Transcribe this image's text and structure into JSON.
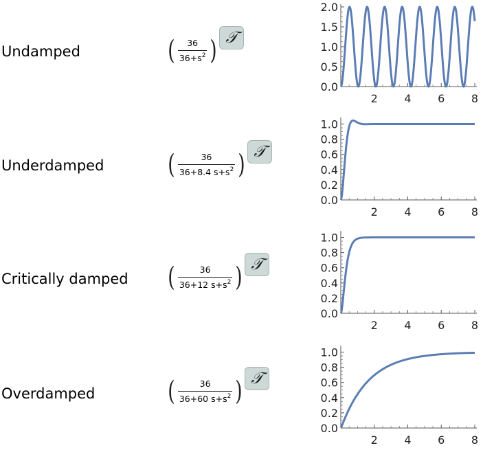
{
  "badge_glyph": "𝒯",
  "rows": [
    {
      "label": "Undamped",
      "numerator": "36",
      "denominator": "36+s",
      "denominator_power": "2"
    },
    {
      "label": "Underdamped",
      "numerator": "36",
      "denominator": "36+8.4 s+s",
      "denominator_power": "2"
    },
    {
      "label": "Critically damped",
      "numerator": "36",
      "denominator": "36+12 s+s",
      "denominator_power": "2"
    },
    {
      "label": "Overdamped",
      "numerator": "36",
      "denominator": "36+60 s+s",
      "denominator_power": "2"
    }
  ],
  "chart_data": [
    {
      "type": "line",
      "series": [
        {
          "response": "undamped",
          "omega_n": 6
        }
      ],
      "xlim": [
        0,
        8
      ],
      "ylim": [
        0,
        2
      ],
      "xticks": [
        "2",
        "4",
        "6",
        "8"
      ],
      "yticks": [
        "0.0",
        "0.5",
        "1.0",
        "1.5",
        "2.0"
      ],
      "line_color": "#5b7db4"
    },
    {
      "type": "line",
      "series": [
        {
          "response": "underdamped",
          "omega_n": 6,
          "zeta": 0.7
        }
      ],
      "xlim": [
        0,
        8
      ],
      "ylim": [
        0,
        1.05
      ],
      "xticks": [
        "2",
        "4",
        "6",
        "8"
      ],
      "yticks": [
        "0.0",
        "0.2",
        "0.4",
        "0.6",
        "0.8",
        "1.0"
      ],
      "line_color": "#5b7db4"
    },
    {
      "type": "line",
      "series": [
        {
          "response": "critically damped",
          "omega_n": 6,
          "zeta": 1
        }
      ],
      "xlim": [
        0,
        8
      ],
      "ylim": [
        0,
        1.05
      ],
      "xticks": [
        "2",
        "4",
        "6",
        "8"
      ],
      "yticks": [
        "0.0",
        "0.2",
        "0.4",
        "0.6",
        "0.8",
        "1.0"
      ],
      "line_color": "#5b7db4"
    },
    {
      "type": "line",
      "series": [
        {
          "response": "overdamped",
          "poles": [
            -0.6,
            -59.4
          ]
        }
      ],
      "xlim": [
        0,
        8
      ],
      "ylim": [
        0,
        1.05
      ],
      "xticks": [
        "2",
        "4",
        "6",
        "8"
      ],
      "yticks": [
        "0.0",
        "0.2",
        "0.4",
        "0.6",
        "0.8",
        "1.0"
      ],
      "line_color": "#5b7db4"
    }
  ]
}
